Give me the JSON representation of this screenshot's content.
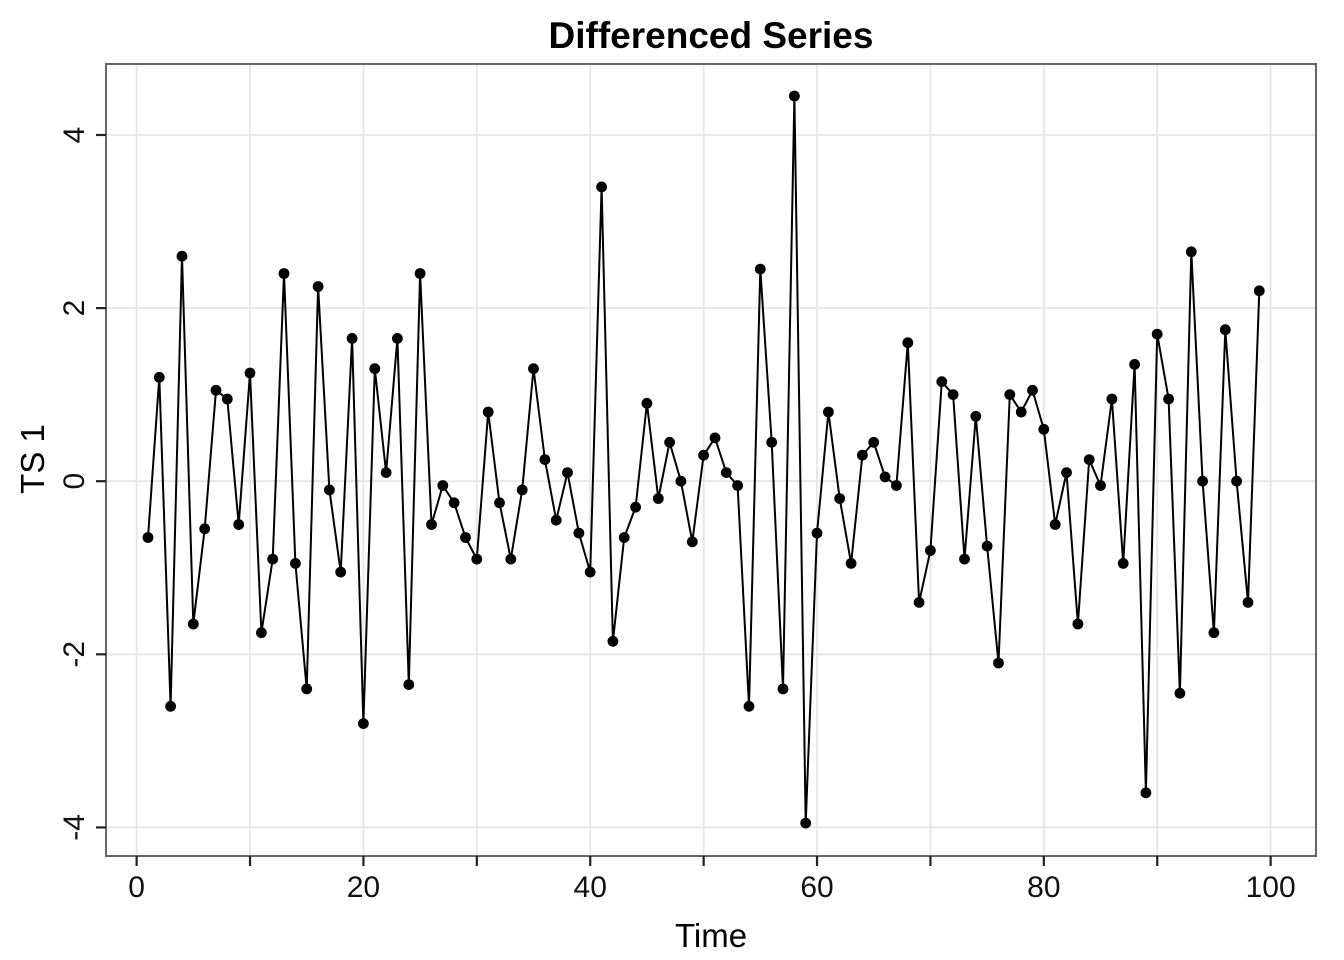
{
  "colors": {
    "background": "#ffffff",
    "line": "#000000",
    "point": "#000000",
    "grid": "#e6e6e6",
    "border": "#666666",
    "tick": "#222222",
    "text": "#111111"
  },
  "chart_data": {
    "type": "line",
    "title": "Differenced Series",
    "xlabel": "Time",
    "ylabel": "TS 1",
    "x_start": 1,
    "n_points": 99,
    "values": [
      -0.65,
      1.2,
      -2.6,
      2.6,
      -1.65,
      -0.55,
      1.05,
      0.95,
      -0.5,
      1.25,
      -1.75,
      -0.9,
      2.4,
      -0.95,
      -2.4,
      2.25,
      -0.1,
      -1.05,
      1.65,
      -2.8,
      1.3,
      0.1,
      1.65,
      -2.35,
      2.4,
      -0.5,
      -0.05,
      -0.25,
      -0.65,
      -0.9,
      0.8,
      -0.25,
      -0.9,
      -0.1,
      1.3,
      0.25,
      -0.45,
      0.1,
      -0.6,
      -1.05,
      3.4,
      -1.85,
      -0.65,
      -0.3,
      0.9,
      -0.2,
      0.45,
      0.0,
      -0.7,
      0.3,
      0.5,
      0.1,
      -0.05,
      -2.6,
      2.45,
      0.45,
      -2.4,
      4.45,
      -3.95,
      -0.6,
      0.8,
      -0.2,
      -0.95,
      0.3,
      0.45,
      0.05,
      -0.05,
      1.6,
      -1.4,
      -0.8,
      1.15,
      1.0,
      -0.9,
      0.75,
      -0.75,
      -2.1,
      1.0,
      0.8,
      1.05,
      0.6,
      -0.5,
      0.1,
      -1.65,
      0.25,
      -0.05,
      0.95,
      -0.95,
      1.35,
      -3.6,
      1.7,
      0.95,
      -2.45,
      2.65,
      0.0,
      -1.75,
      1.75,
      0.0,
      -1.4,
      2.2
    ],
    "xlim": [
      -2.7,
      104
    ],
    "ylim": [
      -4.33,
      4.82
    ],
    "xticks": [
      0,
      10,
      20,
      30,
      40,
      50,
      60,
      70,
      80,
      90,
      100
    ],
    "xtick_labels": [
      "0",
      "",
      "20",
      "",
      "40",
      "",
      "60",
      "",
      "80",
      "",
      "100"
    ],
    "yticks": [
      -4,
      -2,
      0,
      2,
      4
    ],
    "ytick_labels": [
      "-4",
      "-2",
      "0",
      "2",
      "4"
    ],
    "grid": "major-on",
    "legend_position": "none",
    "marker": "filled-circle"
  }
}
